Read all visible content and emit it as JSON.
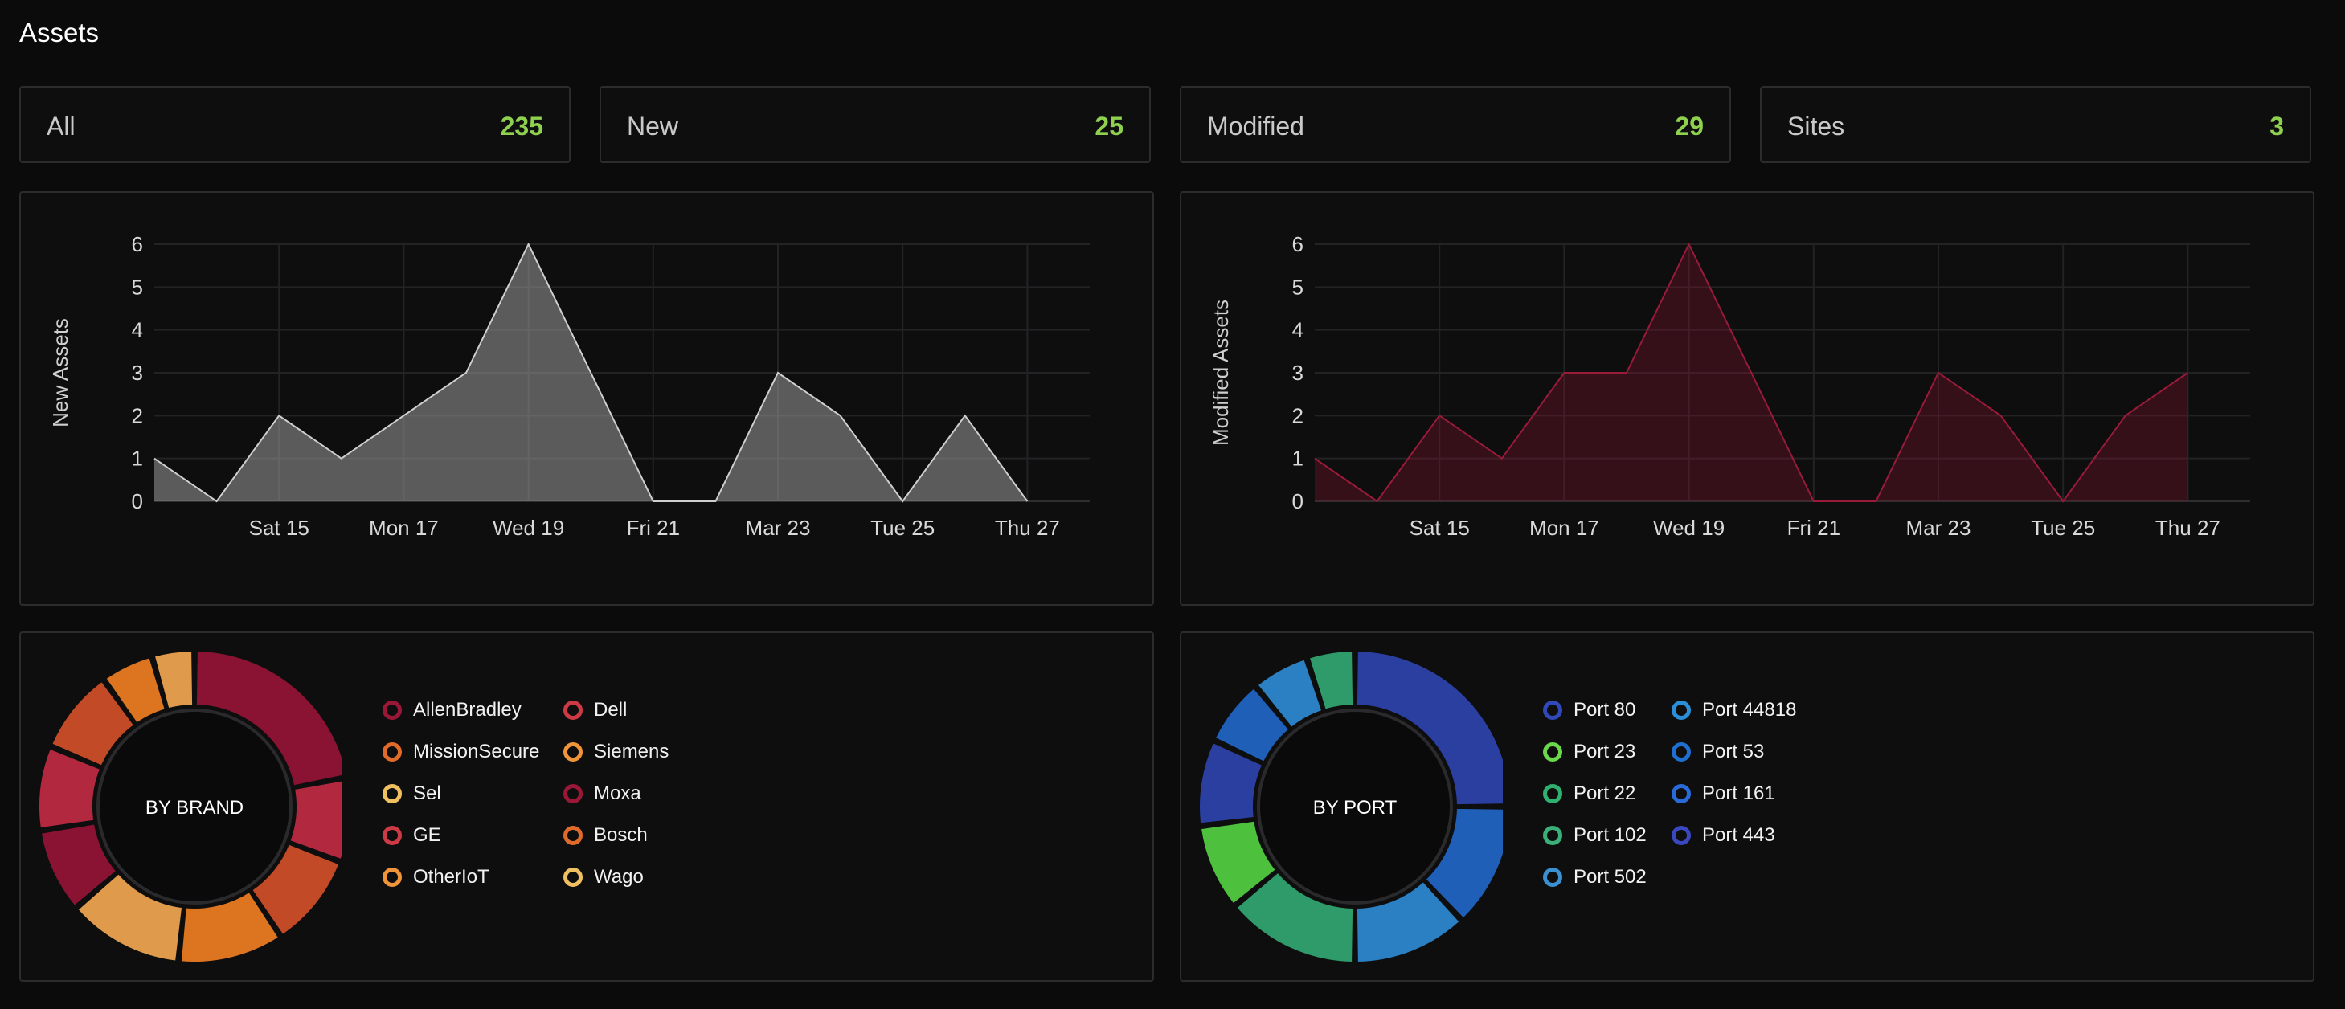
{
  "page": {
    "title": "Assets"
  },
  "stats": [
    {
      "label": "All",
      "value": "235"
    },
    {
      "label": "New",
      "value": "25"
    },
    {
      "label": "Modified",
      "value": "29"
    },
    {
      "label": "Sites",
      "value": "3"
    }
  ],
  "chart_data": [
    {
      "type": "area",
      "ylabel": "New Assets",
      "xlabel": "",
      "ylim": [
        0,
        6
      ],
      "yticks": [
        0,
        1,
        2,
        3,
        4,
        5,
        6
      ],
      "x_dates": [
        "Mar 13",
        "Mar 14",
        "Mar 15",
        "Mar 16",
        "Mar 17",
        "Mar 18",
        "Mar 19",
        "Mar 20",
        "Mar 21",
        "Mar 22",
        "Mar 23",
        "Mar 24",
        "Mar 25",
        "Mar 26",
        "Mar 27",
        "Mar 28"
      ],
      "xtick_labels": [
        "Sat 15",
        "Mon 17",
        "Wed 19",
        "Fri 21",
        "Mar 23",
        "Tue 25",
        "Thu 27"
      ],
      "xtick_dates": [
        "Mar 15",
        "Mar 17",
        "Mar 19",
        "Mar 21",
        "Mar 23",
        "Mar 25",
        "Mar 27"
      ],
      "values": [
        1,
        0,
        2,
        1,
        2,
        3,
        6,
        3,
        0,
        0,
        3,
        2,
        0,
        2,
        0,
        null
      ],
      "grid": true,
      "color": "#9a9a9a"
    },
    {
      "type": "area",
      "ylabel": "Modified Assets",
      "xlabel": "",
      "ylim": [
        0,
        6
      ],
      "yticks": [
        0,
        1,
        2,
        3,
        4,
        5,
        6
      ],
      "x_dates": [
        "Mar 13",
        "Mar 14",
        "Mar 15",
        "Mar 16",
        "Mar 17",
        "Mar 18",
        "Mar 19",
        "Mar 20",
        "Mar 21",
        "Mar 22",
        "Mar 23",
        "Mar 24",
        "Mar 25",
        "Mar 26",
        "Mar 27",
        "Mar 28"
      ],
      "xtick_labels": [
        "Sat 15",
        "Mon 17",
        "Wed 19",
        "Fri 21",
        "Mar 23",
        "Tue 25",
        "Thu 27"
      ],
      "xtick_dates": [
        "Mar 15",
        "Mar 17",
        "Mar 19",
        "Mar 21",
        "Mar 23",
        "Mar 25",
        "Mar 27"
      ],
      "values": [
        1,
        0,
        2,
        1,
        3,
        3,
        6,
        3,
        0,
        0,
        3,
        2,
        0,
        2,
        3,
        null
      ],
      "grid": true,
      "color": "#8a1530"
    }
  ],
  "donuts": [
    {
      "center_label": "BY BRAND",
      "segments": [
        {
          "label": "AllenBradley",
          "value": 20,
          "color": "#8a1333"
        },
        {
          "label": "Dell",
          "value": 8,
          "color": "#b2283f"
        },
        {
          "label": "MissionSecure",
          "value": 9,
          "color": "#c24a26"
        },
        {
          "label": "Siemens",
          "value": 10,
          "color": "#dc7420"
        },
        {
          "label": "Sel",
          "value": 11,
          "color": "#df9a4c"
        },
        {
          "label": "Moxa",
          "value": 8,
          "color": "#8a1333"
        },
        {
          "label": "GE",
          "value": 8,
          "color": "#b2283f"
        },
        {
          "label": "Bosch",
          "value": 8,
          "color": "#c24a26"
        },
        {
          "label": "OtherIoT",
          "value": 5,
          "color": "#dc7420"
        },
        {
          "label": "Wago",
          "value": 4,
          "color": "#df9a4c"
        }
      ],
      "legend_colors": [
        "#9a1737",
        "#cc3a45",
        "#e06a2a",
        "#f0943a",
        "#f0c060",
        "#9a1737",
        "#cc3a45",
        "#e06a2a",
        "#f0943a",
        "#f0c060"
      ]
    },
    {
      "center_label": "BY PORT",
      "segments": [
        {
          "label": "Port 80",
          "value": 25,
          "color": "#2a3fa0"
        },
        {
          "label": "Port 44818",
          "value": 13,
          "color": "#1f5fb8"
        },
        {
          "label": "Port 23",
          "value": 12,
          "color": "#2a80c2"
        },
        {
          "label": "Port 53",
          "value": 14,
          "color": "#2f9a6a"
        },
        {
          "label": "Port 22",
          "value": 9,
          "color": "#4dc03e"
        },
        {
          "label": "Port 161",
          "value": 9,
          "color": "#2a3fa0"
        },
        {
          "label": "Port 102",
          "value": 7,
          "color": "#1f5fb8"
        },
        {
          "label": "Port 443",
          "value": 6,
          "color": "#2a80c2"
        },
        {
          "label": "Port 502",
          "value": 5,
          "color": "#2f9a6a"
        }
      ],
      "legend_colors": [
        "#3048b8",
        "#2a8fd8",
        "#6ad84a",
        "#1f6fd0",
        "#30b070",
        "#2a6ad8",
        "#3ab078",
        "#3a48c0",
        "#3a90d0"
      ]
    }
  ]
}
